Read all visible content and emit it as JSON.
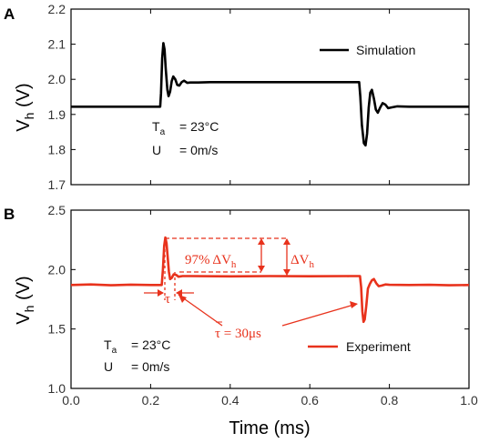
{
  "colors": {
    "simulation": "#000000",
    "experiment": "#e8321c",
    "axis": "#000000"
  },
  "chart_data": [
    {
      "panel": "A",
      "type": "line",
      "ylabel": "Vh (V)",
      "ylabel_main": "V",
      "ylabel_sub": "h",
      "ylabel_unit": "(V)",
      "xlim": [
        0.0,
        1.0
      ],
      "ylim": [
        1.7,
        2.2
      ],
      "yticks": [
        1.7,
        1.8,
        1.9,
        2.0,
        2.1,
        2.2
      ],
      "ytick_labels": [
        "1.7",
        "1.8",
        "1.9",
        "2.0",
        "2.1",
        "2.2"
      ],
      "grid": false,
      "legend_position": "top-right",
      "series": [
        {
          "name": "Simulation",
          "color": "#000000",
          "points": [
            [
              0.0,
              1.922
            ],
            [
              0.224,
              1.922
            ],
            [
              0.226,
              1.96
            ],
            [
              0.229,
              2.06
            ],
            [
              0.232,
              2.103
            ],
            [
              0.235,
              2.085
            ],
            [
              0.238,
              2.03
            ],
            [
              0.242,
              1.97
            ],
            [
              0.245,
              1.952
            ],
            [
              0.249,
              1.965
            ],
            [
              0.253,
              1.995
            ],
            [
              0.257,
              2.008
            ],
            [
              0.262,
              2.0
            ],
            [
              0.267,
              1.984
            ],
            [
              0.272,
              1.982
            ],
            [
              0.278,
              1.992
            ],
            [
              0.284,
              1.996
            ],
            [
              0.292,
              1.99
            ],
            [
              0.3,
              1.991
            ],
            [
              0.32,
              1.991
            ],
            [
              0.35,
              1.992
            ],
            [
              0.4,
              1.992
            ],
            [
              0.5,
              1.992
            ],
            [
              0.6,
              1.992
            ],
            [
              0.7,
              1.992
            ],
            [
              0.724,
              1.992
            ],
            [
              0.727,
              1.95
            ],
            [
              0.731,
              1.87
            ],
            [
              0.736,
              1.818
            ],
            [
              0.74,
              1.812
            ],
            [
              0.744,
              1.845
            ],
            [
              0.748,
              1.92
            ],
            [
              0.752,
              1.962
            ],
            [
              0.756,
              1.97
            ],
            [
              0.761,
              1.945
            ],
            [
              0.766,
              1.914
            ],
            [
              0.771,
              1.905
            ],
            [
              0.777,
              1.92
            ],
            [
              0.783,
              1.932
            ],
            [
              0.79,
              1.928
            ],
            [
              0.797,
              1.918
            ],
            [
              0.805,
              1.92
            ],
            [
              0.82,
              1.923
            ],
            [
              0.85,
              1.922
            ],
            [
              0.9,
              1.922
            ],
            [
              1.0,
              1.922
            ]
          ]
        }
      ],
      "annotations": {
        "temperature_label": "T",
        "temperature_sub": "a",
        "temperature_value": "= 23°C",
        "flow_label": "U",
        "flow_value": "= 0m/s"
      }
    },
    {
      "panel": "B",
      "type": "line",
      "xlabel": "Time (ms)",
      "ylabel": "Vh (V)",
      "ylabel_main": "V",
      "ylabel_sub": "h",
      "ylabel_unit": "(V)",
      "xlim": [
        0.0,
        1.0
      ],
      "ylim": [
        1.0,
        2.5
      ],
      "xticks": [
        0.0,
        0.2,
        0.4,
        0.6,
        0.8,
        1.0
      ],
      "xtick_labels": [
        "0.0",
        "0.2",
        "0.4",
        "0.6",
        "0.8",
        "1.0"
      ],
      "yticks": [
        1.0,
        1.5,
        2.0,
        2.5
      ],
      "ytick_labels": [
        "1.0",
        "1.5",
        "2.0",
        "2.5"
      ],
      "grid": false,
      "legend_position": "bottom-right",
      "series": [
        {
          "name": "Experiment",
          "color": "#e8321c",
          "points": [
            [
              0.0,
              1.87
            ],
            [
              0.05,
              1.875
            ],
            [
              0.1,
              1.868
            ],
            [
              0.15,
              1.873
            ],
            [
              0.2,
              1.87
            ],
            [
              0.228,
              1.87
            ],
            [
              0.231,
              2.0
            ],
            [
              0.234,
              2.2
            ],
            [
              0.237,
              2.27
            ],
            [
              0.24,
              2.22
            ],
            [
              0.243,
              2.1
            ],
            [
              0.246,
              1.98
            ],
            [
              0.249,
              1.92
            ],
            [
              0.253,
              1.93
            ],
            [
              0.258,
              1.96
            ],
            [
              0.264,
              1.955
            ],
            [
              0.27,
              1.94
            ],
            [
              0.28,
              1.945
            ],
            [
              0.3,
              1.945
            ],
            [
              0.4,
              1.943
            ],
            [
              0.5,
              1.945
            ],
            [
              0.6,
              1.944
            ],
            [
              0.7,
              1.945
            ],
            [
              0.726,
              1.945
            ],
            [
              0.729,
              1.85
            ],
            [
              0.732,
              1.65
            ],
            [
              0.735,
              1.56
            ],
            [
              0.738,
              1.58
            ],
            [
              0.742,
              1.7
            ],
            [
              0.746,
              1.84
            ],
            [
              0.751,
              1.88
            ],
            [
              0.756,
              1.91
            ],
            [
              0.761,
              1.92
            ],
            [
              0.767,
              1.885
            ],
            [
              0.773,
              1.86
            ],
            [
              0.78,
              1.865
            ],
            [
              0.79,
              1.875
            ],
            [
              0.8,
              1.872
            ],
            [
              0.85,
              1.87
            ],
            [
              0.9,
              1.872
            ],
            [
              0.95,
              1.868
            ],
            [
              1.0,
              1.87
            ]
          ]
        }
      ],
      "annotations": {
        "percent_label": "97% ΔV",
        "percent_sub": "h",
        "delta_label": "ΔV",
        "delta_sub": "h",
        "tau_label": "τ",
        "tau_value_label": "τ = 30μs",
        "temperature_label": "T",
        "temperature_sub": "a",
        "temperature_value": "= 23°C",
        "flow_label": "U",
        "flow_value": "= 0m/s"
      }
    }
  ]
}
